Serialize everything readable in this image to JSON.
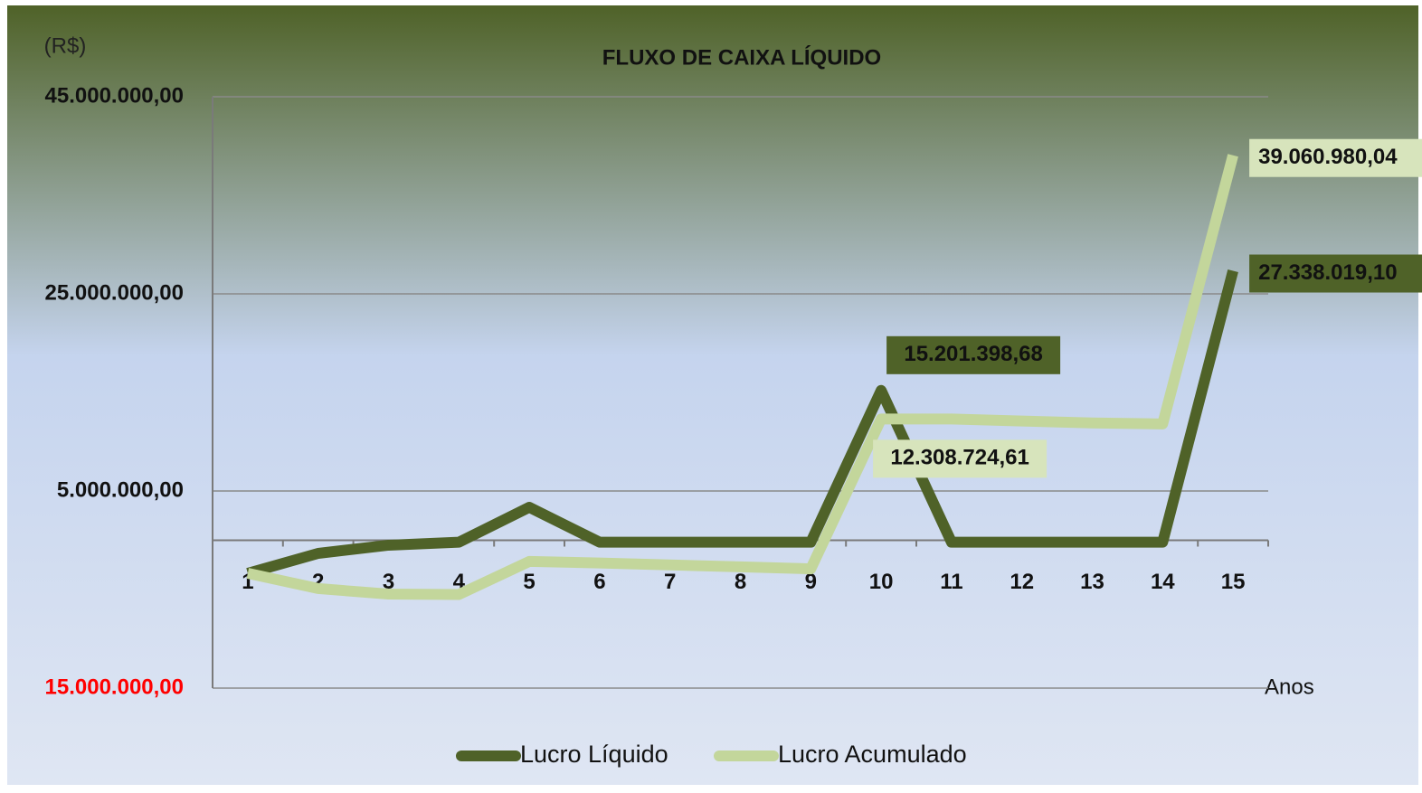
{
  "chart_data": {
    "type": "line",
    "title": "FLUXO DE CAIXA LÍQUIDO",
    "unit_label": "(R$)",
    "x_label": "Anos",
    "categories": [
      "1",
      "2",
      "3",
      "4",
      "5",
      "6",
      "7",
      "8",
      "9",
      "10",
      "11",
      "12",
      "13",
      "14",
      "15"
    ],
    "series": [
      {
        "name": "Lucro Líquido",
        "color": "#4f6228",
        "label_bg": "#4f6228",
        "values": [
          -3350000,
          -1330000,
          -500000,
          -200000,
          3350000,
          -200000,
          -200000,
          -200000,
          -200000,
          15201398.68,
          -200000,
          -200000,
          -200000,
          -200000,
          27338019.1
        ],
        "value_labels": [
          null,
          null,
          null,
          null,
          null,
          null,
          null,
          null,
          null,
          "15.201.398,68",
          null,
          null,
          null,
          null,
          "27.338.019,10"
        ]
      },
      {
        "name": "Lucro Acumulado",
        "color": "#c3d69b",
        "label_bg": "#d7e4bc",
        "values": [
          -3350000,
          -4900000,
          -5460000,
          -5500000,
          -2150000,
          -2300000,
          -2500000,
          -2700000,
          -2900000,
          12308724.61,
          12300000,
          12100000,
          11900000,
          11800000,
          39060980.04
        ],
        "value_labels": [
          null,
          null,
          null,
          null,
          null,
          null,
          null,
          null,
          null,
          "12.308.724,61",
          null,
          null,
          null,
          null,
          "39.060.980,04"
        ]
      }
    ],
    "ylim": [
      -15000000,
      45000000
    ],
    "yticks": [
      {
        "value": 45000000,
        "label": "45.000.000,00"
      },
      {
        "value": 25000000,
        "label": "25.000.000,00"
      },
      {
        "value": 5000000,
        "label": "5.000.000,00"
      },
      {
        "value": -15000000,
        "label": "15.000.000,00"
      }
    ],
    "negative_tick_color": "#ff0000",
    "grid": true,
    "legend": "bottom"
  }
}
